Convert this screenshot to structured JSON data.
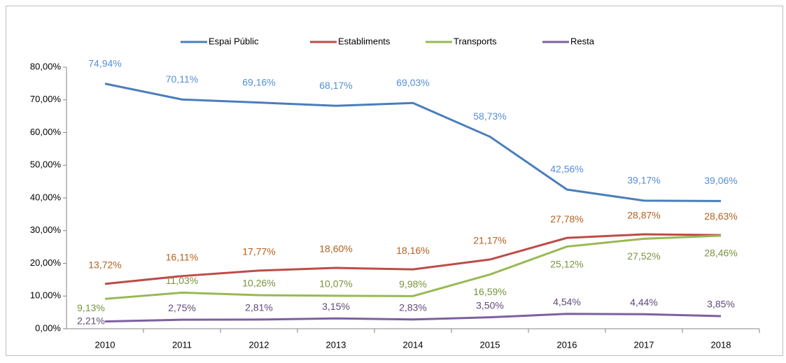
{
  "chart_data": {
    "type": "line",
    "categories": [
      "2010",
      "2011",
      "2012",
      "2013",
      "2014",
      "2015",
      "2016",
      "2017",
      "2018"
    ],
    "series": [
      {
        "name": "Espai Públic",
        "color": "#4a7ebb",
        "label_color": "#558ed5",
        "values": [
          74.94,
          70.11,
          69.16,
          68.17,
          69.03,
          58.73,
          42.56,
          39.17,
          39.06
        ],
        "value_labels": [
          "74,94%",
          "70,11%",
          "69,16%",
          "68,17%",
          "69,03%",
          "58,73%",
          "42,56%",
          "39,17%",
          "39,06%"
        ]
      },
      {
        "name": "Establiments",
        "color": "#be4b48",
        "label_color": "#b5601f",
        "values": [
          13.72,
          16.11,
          17.77,
          18.6,
          18.16,
          21.17,
          27.78,
          28.87,
          28.63
        ],
        "value_labels": [
          "13,72%",
          "16,11%",
          "17,77%",
          "18,60%",
          "18,16%",
          "21,17%",
          "27,78%",
          "28,87%",
          "28,63%"
        ]
      },
      {
        "name": "Transports",
        "color": "#98b954",
        "label_color": "#77933c",
        "values": [
          9.13,
          11.03,
          10.26,
          10.07,
          9.98,
          16.59,
          25.12,
          27.52,
          28.46
        ],
        "value_labels": [
          "9,13%",
          "11,03%",
          "10,26%",
          "10,07%",
          "9,98%",
          "16,59%",
          "25,12%",
          "27,52%",
          "28,46%"
        ]
      },
      {
        "name": "Resta",
        "color": "#7d60a0",
        "label_color": "#604a7b",
        "values": [
          2.21,
          2.75,
          2.81,
          3.15,
          2.83,
          3.5,
          4.54,
          4.44,
          3.85
        ],
        "value_labels": [
          "2,21%",
          "2,75%",
          "2,81%",
          "3,15%",
          "2,83%",
          "3,50%",
          "4,54%",
          "4,44%",
          "3,85%"
        ]
      }
    ],
    "ylim": [
      0,
      80
    ],
    "yticks": [
      {
        "value": 0,
        "label": "0,00%"
      },
      {
        "value": 10,
        "label": "10,00%"
      },
      {
        "value": 20,
        "label": "20,00%"
      },
      {
        "value": 30,
        "label": "30,00%"
      },
      {
        "value": 40,
        "label": "40,00%"
      },
      {
        "value": 50,
        "label": "50,00%"
      },
      {
        "value": 60,
        "label": "60,00%"
      },
      {
        "value": 70,
        "label": "70,00%"
      },
      {
        "value": 80,
        "label": "80,00%"
      }
    ],
    "legend": "top",
    "grid": false
  }
}
